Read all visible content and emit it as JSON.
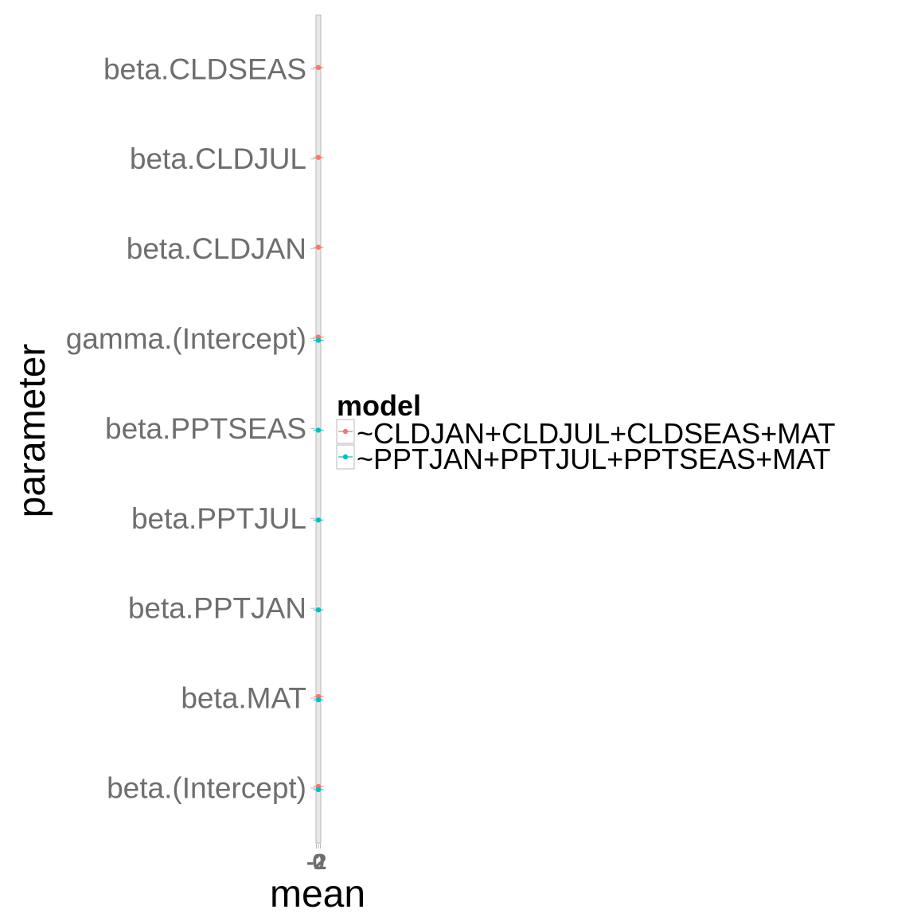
{
  "chart_data": {
    "type": "scatter",
    "orientation": "horizontal",
    "xlabel": "mean",
    "ylabel": "parameter",
    "xlim": [
      -2,
      2
    ],
    "x_tick_labels": [
      "-2",
      "0",
      "2"
    ],
    "grid": false,
    "legend_position": "right",
    "legend_title": "model",
    "categories": [
      "beta.(Intercept)",
      "beta.MAT",
      "beta.PPTJAN",
      "beta.PPTJUL",
      "beta.PPTSEAS",
      "gamma.(Intercept)",
      "beta.CLDJAN",
      "beta.CLDJUL",
      "beta.CLDSEAS"
    ],
    "series": [
      {
        "name": "~CLDJAN+CLDJUL+CLDSEAS+MAT",
        "color": "#F8766D",
        "points": [
          {
            "category": "beta.(Intercept)",
            "mean": 0.05,
            "lower": -0.3,
            "upper": 0.4
          },
          {
            "category": "beta.MAT",
            "mean": 0.1,
            "lower": -0.2,
            "upper": 0.4
          },
          {
            "category": "gamma.(Intercept)",
            "mean": -0.1,
            "lower": -0.5,
            "upper": 0.3
          },
          {
            "category": "beta.CLDJAN",
            "mean": 0.0,
            "lower": -0.3,
            "upper": 0.3
          },
          {
            "category": "beta.CLDJUL",
            "mean": 0.05,
            "lower": -0.3,
            "upper": 0.4
          },
          {
            "category": "beta.CLDSEAS",
            "mean": 0.0,
            "lower": -0.4,
            "upper": 0.4
          }
        ]
      },
      {
        "name": "~PPTJAN+PPTJUL+PPTSEAS+MAT",
        "color": "#00BFC4",
        "points": [
          {
            "category": "beta.(Intercept)",
            "mean": -0.05,
            "lower": -0.4,
            "upper": 0.3
          },
          {
            "category": "beta.MAT",
            "mean": 0.05,
            "lower": -0.2,
            "upper": 0.3
          },
          {
            "category": "beta.PPTJAN",
            "mean": 0.0,
            "lower": -0.3,
            "upper": 0.3
          },
          {
            "category": "beta.PPTJUL",
            "mean": 0.0,
            "lower": -0.3,
            "upper": 0.3
          },
          {
            "category": "beta.PPTSEAS",
            "mean": -0.05,
            "lower": -0.4,
            "upper": 0.3
          },
          {
            "category": "gamma.(Intercept)",
            "mean": 0.0,
            "lower": -0.4,
            "upper": 0.4
          }
        ]
      }
    ]
  }
}
